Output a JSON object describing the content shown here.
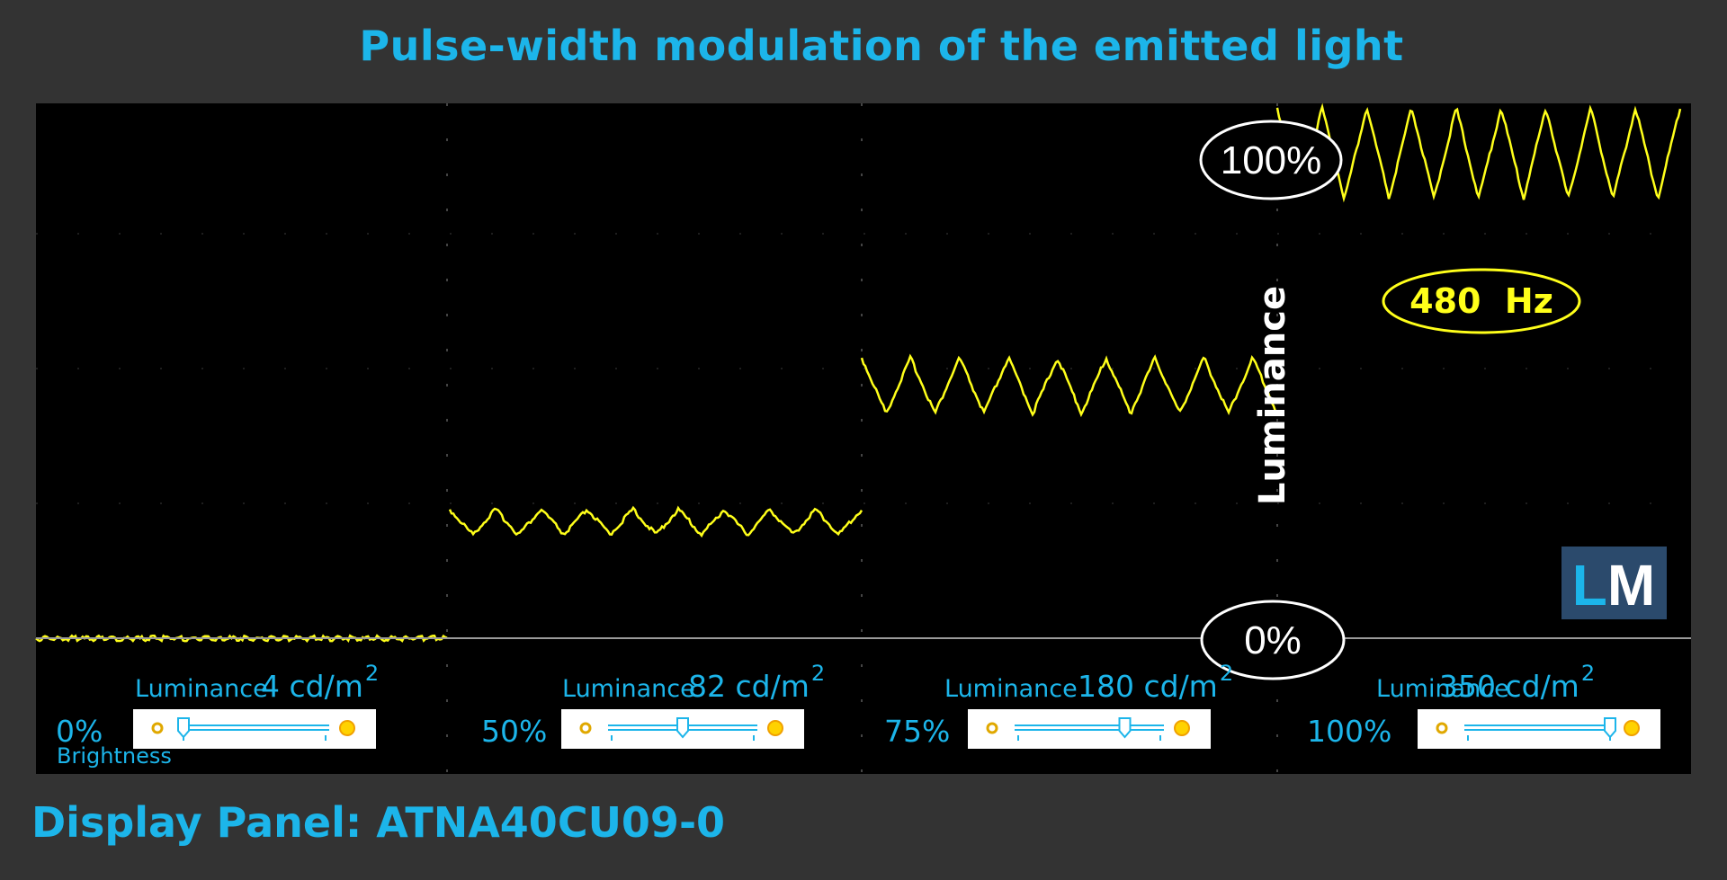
{
  "title": "Pulse-width modulation of the emitted light",
  "footer": "Display Panel: ATNA40CU09-0",
  "colors": {
    "background": "#333333",
    "plot_bg": "#000000",
    "accent": "#1cb5ea",
    "signal": "#ffff1a",
    "logo_bg": "#2b4a6c"
  },
  "chart_data": {
    "type": "line",
    "title": "Pulse-width modulation of the emitted light",
    "ylabel": "Luminance",
    "ylim": [
      0,
      100
    ],
    "y_reference_labels": {
      "top": "100%",
      "bottom": "0%"
    },
    "frequency_label": "480  Hz",
    "grid": "dotted",
    "logo": "LM",
    "panels": [
      {
        "brightness": "0%",
        "brightness_label": "Brightness",
        "luminance_label": "Luminance",
        "luminance_value": "4 cd/m",
        "luminance_sup": "2",
        "slider_level": 0,
        "level_pct": 0.5,
        "amplitude_pct": 0.5,
        "cycles": 0
      },
      {
        "brightness": "50%",
        "luminance_label": "Luminance",
        "luminance_value": "82 cd/m",
        "luminance_sup": "2",
        "slider_level": 0.5,
        "level_pct": 23.0,
        "amplitude_pct": 2.5,
        "cycles": 9
      },
      {
        "brightness": "75%",
        "luminance_label": "Luminance",
        "luminance_value": "180 cd/m",
        "luminance_sup": "2",
        "slider_level": 0.75,
        "level_pct": 50.0,
        "amplitude_pct": 5.5,
        "cycles": 8.5
      },
      {
        "brightness": "100%",
        "luminance_label": "Luminance",
        "luminance_value": "350 cd/m",
        "luminance_sup": "2",
        "slider_level": 1.0,
        "level_pct": 96.0,
        "amplitude_pct": 9.0,
        "cycles": 9
      }
    ]
  }
}
